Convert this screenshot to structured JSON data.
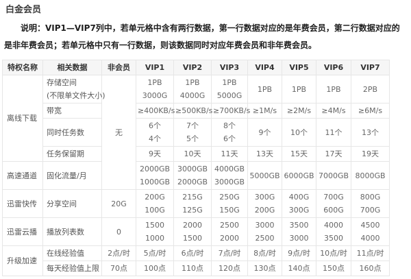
{
  "page": {
    "title": "白金会员",
    "description": "说明：VIP1—VIP7列中，若单元格中含有两行数据，第一行数据对应的是年费会员，第二行数据对应的是非年费会员；若单元格中只有一行数据，则该数据同时对应年费会员和非年费会员。"
  },
  "colors": {
    "title": "#3b3b3b",
    "description": "#1f1f1f",
    "header_text": "#333333",
    "cell_text": "#666666",
    "label_text": "#555555",
    "border": "#e6e6e6",
    "header_bg": "#f6f6f6",
    "page_bg": "#ffffff"
  },
  "table": {
    "headers": [
      "特权名称",
      "相关数据",
      "非会员",
      "VIP1",
      "VIP2",
      "VIP3",
      "VIP4",
      "VIP5",
      "VIP6",
      "VIP7"
    ],
    "rows": [
      {
        "cells": [
          {
            "text": "离线下载",
            "type": "group",
            "rowspan": 4
          },
          {
            "text": "存储空间\n(不限单文件大小)",
            "type": "label"
          },
          {
            "text": "无",
            "type": "data",
            "rowspan": 5
          },
          {
            "text": "1PB\n3000G",
            "type": "data"
          },
          {
            "text": "1PB\n4000G",
            "type": "data"
          },
          {
            "text": "1PB\n5000G",
            "type": "data"
          },
          {
            "text": "1PB",
            "type": "data"
          },
          {
            "text": "1PB",
            "type": "data"
          },
          {
            "text": "1PB",
            "type": "data"
          },
          {
            "text": "2PB",
            "type": "data"
          }
        ]
      },
      {
        "cells": [
          {
            "text": "带宽",
            "type": "label"
          },
          {
            "text": "≥400KB/s",
            "type": "data"
          },
          {
            "text": "≥500KB/s",
            "type": "data"
          },
          {
            "text": "≥700KB/s",
            "type": "data"
          },
          {
            "text": "≥1M/s",
            "type": "data"
          },
          {
            "text": "≥2M/s",
            "type": "data"
          },
          {
            "text": "≥4M/s",
            "type": "data"
          },
          {
            "text": "≥6M/s",
            "type": "data"
          }
        ]
      },
      {
        "cells": [
          {
            "text": "同时任务数",
            "type": "label"
          },
          {
            "text": "6个\n4个",
            "type": "data"
          },
          {
            "text": "7个\n5个",
            "type": "data"
          },
          {
            "text": "8个\n6个",
            "type": "data"
          },
          {
            "text": "9个",
            "type": "data"
          },
          {
            "text": "10个",
            "type": "data"
          },
          {
            "text": "11个",
            "type": "data"
          },
          {
            "text": "13个",
            "type": "data"
          }
        ]
      },
      {
        "cells": [
          {
            "text": "任务保留期",
            "type": "label"
          },
          {
            "text": "9天",
            "type": "data"
          },
          {
            "text": "10天",
            "type": "data"
          },
          {
            "text": "11天",
            "type": "data"
          },
          {
            "text": "13天",
            "type": "data"
          },
          {
            "text": "15天",
            "type": "data"
          },
          {
            "text": "17天",
            "type": "data"
          },
          {
            "text": "19天",
            "type": "data"
          }
        ]
      },
      {
        "cells": [
          {
            "text": "高速通道",
            "type": "group"
          },
          {
            "text": "固化流量/月",
            "type": "label"
          },
          {
            "text": "2000GB\n1000GB",
            "type": "data"
          },
          {
            "text": "3000GB\n2000GB",
            "type": "data"
          },
          {
            "text": "4000GB\n3000GB",
            "type": "data"
          },
          {
            "text": "5000GB",
            "type": "data"
          },
          {
            "text": "6000GB",
            "type": "data"
          },
          {
            "text": "7000GB",
            "type": "data"
          },
          {
            "text": "8000GB",
            "type": "data"
          }
        ]
      },
      {
        "cells": [
          {
            "text": "迅雷快传",
            "type": "group"
          },
          {
            "text": "分享空间",
            "type": "label"
          },
          {
            "text": "20G",
            "type": "data"
          },
          {
            "text": "200G\n100G",
            "type": "data"
          },
          {
            "text": "215G\n125G",
            "type": "data"
          },
          {
            "text": "250G\n150G",
            "type": "data"
          },
          {
            "text": "300G\n200G",
            "type": "data"
          },
          {
            "text": "400G\n300G",
            "type": "data"
          },
          {
            "text": "700G\n600G",
            "type": "data"
          },
          {
            "text": "800G\n700G",
            "type": "data"
          }
        ]
      },
      {
        "cells": [
          {
            "text": "迅雷云播",
            "type": "group"
          },
          {
            "text": "播放列表数",
            "type": "label"
          },
          {
            "text": "0",
            "type": "data"
          },
          {
            "text": "1500\n1000",
            "type": "data"
          },
          {
            "text": "2000\n1500",
            "type": "data"
          },
          {
            "text": "2500\n2000",
            "type": "data"
          },
          {
            "text": "3000\n2500",
            "type": "data"
          },
          {
            "text": "3500\n3000",
            "type": "data"
          },
          {
            "text": "4000\n3500",
            "type": "data"
          },
          {
            "text": "4500\n4000",
            "type": "data"
          }
        ]
      },
      {
        "cells": [
          {
            "text": "升级加速",
            "type": "group",
            "rowspan": 2
          },
          {
            "text": "在线经验值",
            "type": "label"
          },
          {
            "text": "2点/时",
            "type": "data"
          },
          {
            "text": "5点/时",
            "type": "data"
          },
          {
            "text": "6点/时",
            "type": "data"
          },
          {
            "text": "7点/时",
            "type": "data"
          },
          {
            "text": "8点/时",
            "type": "data"
          },
          {
            "text": "9点/时",
            "type": "data"
          },
          {
            "text": "10点/时",
            "type": "data"
          },
          {
            "text": "11点/时",
            "type": "data"
          }
        ]
      },
      {
        "cells": [
          {
            "text": "每天经验值上限",
            "type": "label"
          },
          {
            "text": "70点",
            "type": "data"
          },
          {
            "text": "100点",
            "type": "data"
          },
          {
            "text": "110点",
            "type": "data"
          },
          {
            "text": "120点",
            "type": "data"
          },
          {
            "text": "130点",
            "type": "data"
          },
          {
            "text": "140点",
            "type": "data"
          },
          {
            "text": "150点",
            "type": "data"
          },
          {
            "text": "160点",
            "type": "data"
          }
        ]
      }
    ]
  }
}
